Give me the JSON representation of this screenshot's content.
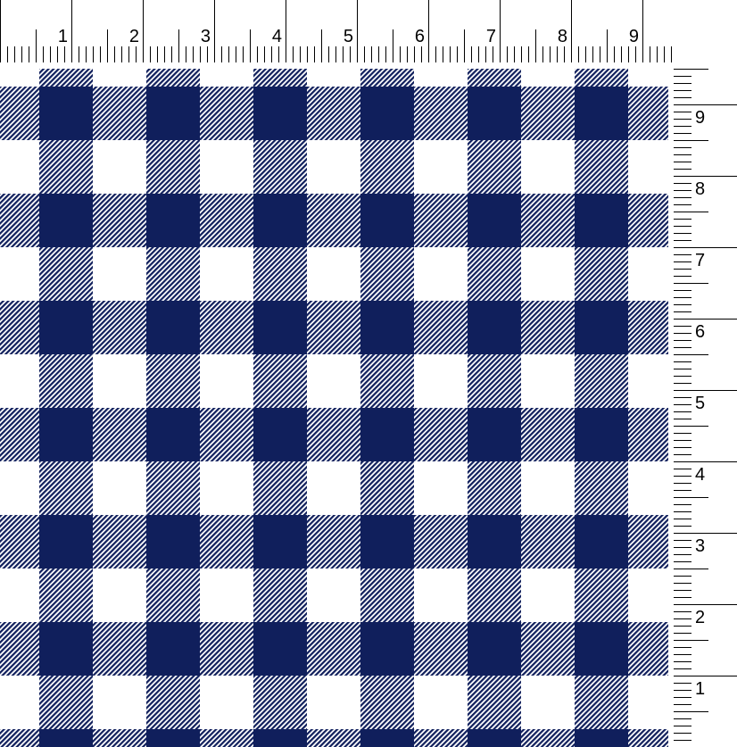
{
  "ruler": {
    "unit_labels_top": [
      "1",
      "2",
      "3",
      "4",
      "5",
      "6",
      "7",
      "8",
      "9"
    ],
    "unit_labels_right": [
      "9",
      "8",
      "7",
      "6",
      "5",
      "4",
      "3",
      "2",
      "1"
    ],
    "ticks_per_unit": 10
  },
  "fabric": {
    "pattern": "buffalo-check-twill",
    "colors": {
      "navy": "#101f5c",
      "white": "#ffffff"
    }
  }
}
